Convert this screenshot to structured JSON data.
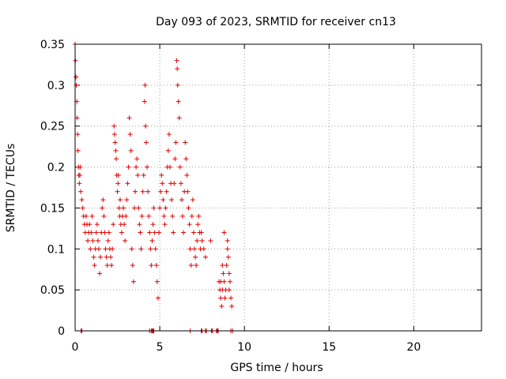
{
  "chart_data": {
    "type": "scatter",
    "title": "Day 093 of 2023, SRMTID for receiver cn13",
    "xlabel": "GPS time / hours",
    "ylabel": "SRMTID / TECUs",
    "xlim": [
      0,
      24
    ],
    "ylim": [
      0,
      0.35
    ],
    "xticks": [
      0,
      5,
      10,
      15,
      20
    ],
    "yticks": [
      0,
      0.05,
      0.1,
      0.15,
      0.2,
      0.25,
      0.3,
      0.35
    ],
    "xtick_labels": [
      "0",
      "5",
      "10",
      "15",
      "20"
    ],
    "ytick_labels": [
      "0",
      "0.05",
      "0.1",
      "0.15",
      "0.2",
      "0.25",
      "0.3",
      "0.35"
    ],
    "grid": true,
    "marker": "+",
    "color": "#e00000",
    "series": [
      {
        "name": "SRMTID",
        "points": [
          [
            0.0,
            0.35
          ],
          [
            0.02,
            0.33
          ],
          [
            0.05,
            0.31
          ],
          [
            0.07,
            0.3
          ],
          [
            0.1,
            0.28
          ],
          [
            0.12,
            0.26
          ],
          [
            0.15,
            0.24
          ],
          [
            0.17,
            0.22
          ],
          [
            0.2,
            0.2
          ],
          [
            0.22,
            0.19
          ],
          [
            0.25,
            0.18
          ],
          [
            0.28,
            0.19
          ],
          [
            0.3,
            0.2
          ],
          [
            0.33,
            0.17
          ],
          [
            0.4,
            0.16
          ],
          [
            0.45,
            0.15
          ],
          [
            0.5,
            0.14
          ],
          [
            0.55,
            0.13
          ],
          [
            0.6,
            0.12
          ],
          [
            0.65,
            0.14
          ],
          [
            0.7,
            0.13
          ],
          [
            0.75,
            0.11
          ],
          [
            0.8,
            0.12
          ],
          [
            0.85,
            0.13
          ],
          [
            0.9,
            0.1
          ],
          [
            0.95,
            0.12
          ],
          [
            1.0,
            0.14
          ],
          [
            1.05,
            0.11
          ],
          [
            1.1,
            0.09
          ],
          [
            1.15,
            0.08
          ],
          [
            1.2,
            0.1
          ],
          [
            1.25,
            0.12
          ],
          [
            1.3,
            0.13
          ],
          [
            1.35,
            0.11
          ],
          [
            1.4,
            0.1
          ],
          [
            1.45,
            0.07
          ],
          [
            1.5,
            0.09
          ],
          [
            1.55,
            0.12
          ],
          [
            1.6,
            0.15
          ],
          [
            1.65,
            0.16
          ],
          [
            1.7,
            0.14
          ],
          [
            1.75,
            0.12
          ],
          [
            1.8,
            0.1
          ],
          [
            1.85,
            0.09
          ],
          [
            1.9,
            0.08
          ],
          [
            1.95,
            0.11
          ],
          [
            2.0,
            0.12
          ],
          [
            2.05,
            0.1
          ],
          [
            2.1,
            0.09
          ],
          [
            2.15,
            0.08
          ],
          [
            2.2,
            0.1
          ],
          [
            2.25,
            0.13
          ],
          [
            2.3,
            0.25
          ],
          [
            2.33,
            0.24
          ],
          [
            2.36,
            0.23
          ],
          [
            2.4,
            0.22
          ],
          [
            2.43,
            0.21
          ],
          [
            2.46,
            0.19
          ],
          [
            2.5,
            0.17
          ],
          [
            2.53,
            0.18
          ],
          [
            2.56,
            0.19
          ],
          [
            2.6,
            0.15
          ],
          [
            2.63,
            0.14
          ],
          [
            2.66,
            0.16
          ],
          [
            2.7,
            0.13
          ],
          [
            2.75,
            0.12
          ],
          [
            2.8,
            0.14
          ],
          [
            2.85,
            0.15
          ],
          [
            2.9,
            0.13
          ],
          [
            2.95,
            0.11
          ],
          [
            3.0,
            0.14
          ],
          [
            3.05,
            0.16
          ],
          [
            3.1,
            0.18
          ],
          [
            3.15,
            0.2
          ],
          [
            3.2,
            0.26
          ],
          [
            3.25,
            0.24
          ],
          [
            3.3,
            0.22
          ],
          [
            3.35,
            0.1
          ],
          [
            3.4,
            0.08
          ],
          [
            3.45,
            0.06
          ],
          [
            3.5,
            0.15
          ],
          [
            3.55,
            0.17
          ],
          [
            3.6,
            0.2
          ],
          [
            3.65,
            0.21
          ],
          [
            3.7,
            0.19
          ],
          [
            3.75,
            0.15
          ],
          [
            3.8,
            0.13
          ],
          [
            3.85,
            0.12
          ],
          [
            3.9,
            0.1
          ],
          [
            3.95,
            0.14
          ],
          [
            4.0,
            0.17
          ],
          [
            4.05,
            0.19
          ],
          [
            4.1,
            0.28
          ],
          [
            4.13,
            0.3
          ],
          [
            4.16,
            0.25
          ],
          [
            4.2,
            0.23
          ],
          [
            4.25,
            0.2
          ],
          [
            4.3,
            0.17
          ],
          [
            4.35,
            0.14
          ],
          [
            4.4,
            0.12
          ],
          [
            4.45,
            0.1
          ],
          [
            4.5,
            0.08
          ],
          [
            4.55,
            0.11
          ],
          [
            4.6,
            0.13
          ],
          [
            4.65,
            0.15
          ],
          [
            4.7,
            0.12
          ],
          [
            4.75,
            0.1
          ],
          [
            4.8,
            0.08
          ],
          [
            4.85,
            0.06
          ],
          [
            4.9,
            0.04
          ],
          [
            4.95,
            0.12
          ],
          [
            5.0,
            0.15
          ],
          [
            5.05,
            0.17
          ],
          [
            5.1,
            0.19
          ],
          [
            5.15,
            0.18
          ],
          [
            5.2,
            0.16
          ],
          [
            5.25,
            0.14
          ],
          [
            5.3,
            0.13
          ],
          [
            5.35,
            0.15
          ],
          [
            5.4,
            0.17
          ],
          [
            5.45,
            0.2
          ],
          [
            5.5,
            0.22
          ],
          [
            5.55,
            0.24
          ],
          [
            5.6,
            0.2
          ],
          [
            5.65,
            0.18
          ],
          [
            5.7,
            0.16
          ],
          [
            5.75,
            0.14
          ],
          [
            5.8,
            0.12
          ],
          [
            5.85,
            0.18
          ],
          [
            5.9,
            0.21
          ],
          [
            5.95,
            0.23
          ],
          [
            6.0,
            0.33
          ],
          [
            6.03,
            0.32
          ],
          [
            6.06,
            0.3
          ],
          [
            6.1,
            0.28
          ],
          [
            6.15,
            0.26
          ],
          [
            6.2,
            0.2
          ],
          [
            6.25,
            0.18
          ],
          [
            6.3,
            0.16
          ],
          [
            6.35,
            0.14
          ],
          [
            6.4,
            0.12
          ],
          [
            6.45,
            0.17
          ],
          [
            6.5,
            0.23
          ],
          [
            6.55,
            0.21
          ],
          [
            6.6,
            0.19
          ],
          [
            6.65,
            0.17
          ],
          [
            6.7,
            0.15
          ],
          [
            6.75,
            0.13
          ],
          [
            6.8,
            0.1
          ],
          [
            6.85,
            0.08
          ],
          [
            6.9,
            0.14
          ],
          [
            6.95,
            0.16
          ],
          [
            7.0,
            0.12
          ],
          [
            7.05,
            0.1
          ],
          [
            7.1,
            0.09
          ],
          [
            7.15,
            0.08
          ],
          [
            7.2,
            0.11
          ],
          [
            7.25,
            0.13
          ],
          [
            7.3,
            0.14
          ],
          [
            7.35,
            0.12
          ],
          [
            7.4,
            0.1
          ],
          [
            7.45,
            0.12
          ],
          [
            7.5,
            0.11
          ],
          [
            7.6,
            0.1
          ],
          [
            7.7,
            0.09
          ],
          [
            8.0,
            0.11
          ],
          [
            8.5,
            0.06
          ],
          [
            8.55,
            0.05
          ],
          [
            8.6,
            0.04
          ],
          [
            8.65,
            0.03
          ],
          [
            8.7,
            0.05
          ],
          [
            8.75,
            0.07
          ],
          [
            8.8,
            0.06
          ],
          [
            8.85,
            0.04
          ],
          [
            8.9,
            0.05
          ],
          [
            8.95,
            0.08
          ],
          [
            9.0,
            0.1
          ],
          [
            9.05,
            0.09
          ],
          [
            9.1,
            0.07
          ],
          [
            9.15,
            0.06
          ],
          [
            9.2,
            0.04
          ],
          [
            9.25,
            0.03
          ],
          [
            8.8,
            0.12
          ],
          [
            9.0,
            0.11
          ],
          [
            8.6,
            0.06
          ],
          [
            8.7,
            0.08
          ],
          [
            9.1,
            0.05
          ],
          [
            0.35,
            0.0
          ],
          [
            0.4,
            0.0
          ],
          [
            4.4,
            0.0
          ],
          [
            4.5,
            0.0
          ],
          [
            4.55,
            0.0
          ],
          [
            4.6,
            0.0
          ],
          [
            4.65,
            0.0
          ],
          [
            6.8,
            0.0
          ],
          [
            7.45,
            0.0
          ],
          [
            7.5,
            0.0
          ],
          [
            7.7,
            0.0
          ],
          [
            7.75,
            0.0
          ],
          [
            8.05,
            0.0
          ],
          [
            8.1,
            0.0
          ],
          [
            8.35,
            0.0
          ],
          [
            8.4,
            0.0
          ],
          [
            8.45,
            0.0
          ],
          [
            9.2,
            0.0
          ],
          [
            9.3,
            0.0
          ]
        ]
      }
    ]
  }
}
